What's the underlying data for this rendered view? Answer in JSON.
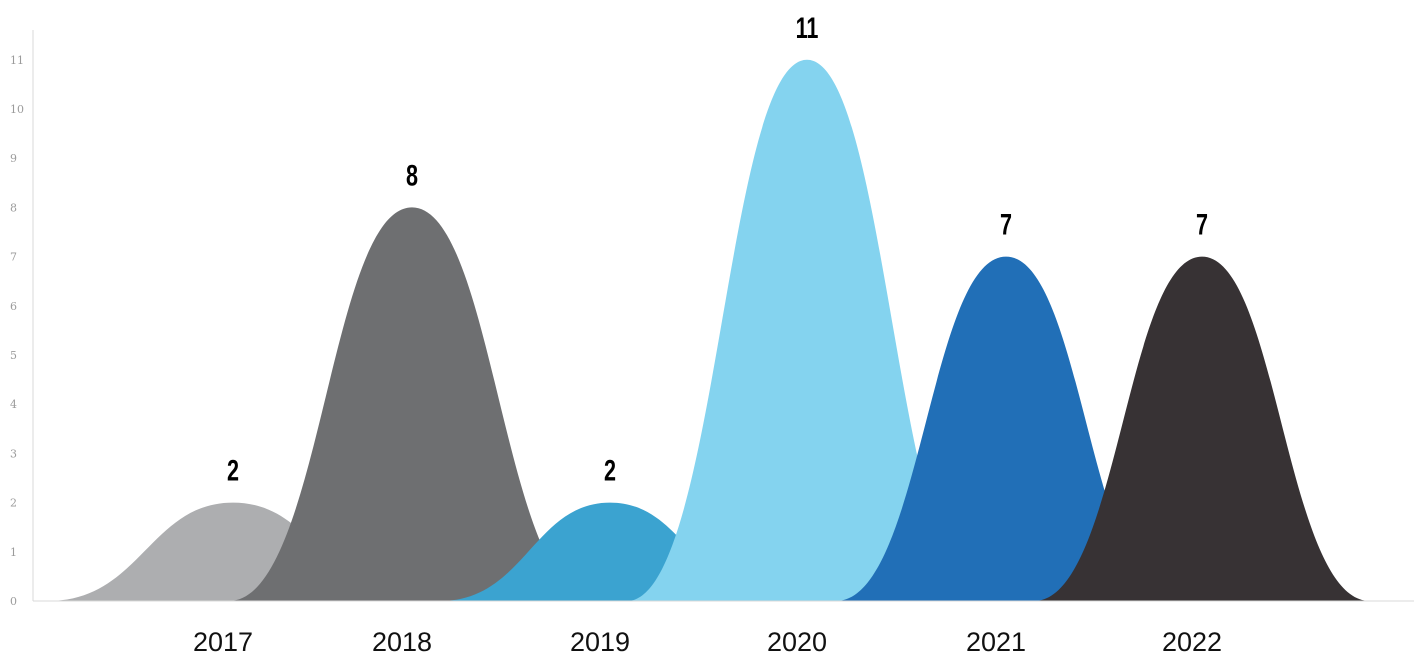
{
  "chart_data": {
    "type": "area",
    "title": "",
    "xlabel": "",
    "ylabel": "",
    "ylim": [
      0,
      12
    ],
    "yticks": [
      0,
      1,
      2,
      3,
      4,
      5,
      6,
      7,
      8,
      9,
      10,
      11
    ],
    "grid": false,
    "legend": "none",
    "categories": [
      "2017",
      "2018",
      "2019",
      "2020",
      "2021",
      "2022"
    ],
    "values": [
      2,
      8,
      2,
      11,
      7,
      7
    ],
    "data_labels": [
      "2",
      "8",
      "2",
      "11",
      "7",
      "7"
    ],
    "colors": [
      "#adaeb0",
      "#6e6f71",
      "#3ba3d0",
      "#84d3ef",
      "#216fb7",
      "#373234"
    ],
    "axis_color": "#d9d9d9"
  }
}
